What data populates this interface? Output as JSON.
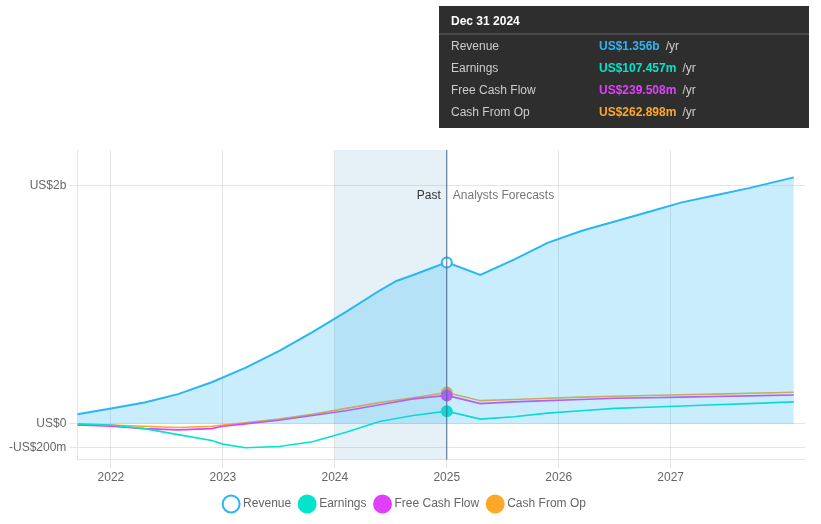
{
  "chart_data": {
    "type": "line",
    "xlim": [
      2021.7,
      2028.2
    ],
    "xticks": [
      2022,
      2023,
      2024,
      2025,
      2026,
      2027
    ],
    "ylim": [
      -0.3,
      2.3
    ],
    "yticks": [
      {
        "value": -0.2,
        "label": "-US$200m"
      },
      {
        "value": 0,
        "label": "US$0"
      },
      {
        "value": 2,
        "label": "US$2b"
      }
    ],
    "grid": true,
    "legend": "bottom",
    "divider_x": 2025.0,
    "shaded_span": [
      2024.0,
      2025.0
    ],
    "annotations": [
      {
        "text": "Past",
        "x": 2025.0,
        "y": 1.97
      },
      {
        "text": "Analysts Forecasts",
        "x": 2025.0,
        "y": 1.97
      }
    ],
    "tooltip": {
      "title": "Dec 31 2024",
      "unit": "/yr",
      "items": [
        {
          "label": "Revenue",
          "value": "US$1.356b",
          "color": "#29b6f6"
        },
        {
          "label": "Earnings",
          "value": "US$107.457m",
          "color": "#00e5cc"
        },
        {
          "label": "Free Cash Flow",
          "value": "US$239.508m",
          "color": "#e040fb"
        },
        {
          "label": "Cash From Op",
          "value": "US$262.898m",
          "color": "#ffa726"
        }
      ]
    },
    "series": [
      {
        "name": "Revenue",
        "color": "#29b6f6",
        "type": "area",
        "x": [
          2021.7,
          2022.0,
          2022.3,
          2022.6,
          2022.9,
          2023.2,
          2023.5,
          2023.8,
          2024.1,
          2024.4,
          2024.55,
          2024.7,
          2025.0,
          2025.3,
          2025.6,
          2025.9,
          2026.2,
          2026.5,
          2026.8,
          2027.1,
          2027.4,
          2027.7,
          2028.1
        ],
        "values": [
          0.08,
          0.13,
          0.18,
          0.25,
          0.35,
          0.47,
          0.61,
          0.77,
          0.94,
          1.12,
          1.2,
          1.25,
          1.356,
          1.25,
          1.38,
          1.52,
          1.62,
          1.7,
          1.78,
          1.86,
          1.92,
          1.98,
          2.07
        ]
      },
      {
        "name": "Earnings",
        "color": "#00e5cc",
        "type": "line",
        "x": [
          2021.7,
          2022.0,
          2022.3,
          2022.6,
          2022.9,
          2023.0,
          2023.2,
          2023.5,
          2023.8,
          2024.1,
          2024.4,
          2024.7,
          2025.0,
          2025.3,
          2025.6,
          2025.9,
          2026.2,
          2026.5,
          2026.8,
          2027.1,
          2027.4,
          2027.7,
          2028.1
        ],
        "values": [
          0.0,
          -0.01,
          -0.04,
          -0.09,
          -0.14,
          -0.17,
          -0.2,
          -0.19,
          -0.15,
          -0.07,
          0.02,
          0.07,
          0.107,
          0.04,
          0.06,
          0.09,
          0.11,
          0.13,
          0.14,
          0.15,
          0.16,
          0.17,
          0.185
        ]
      },
      {
        "name": "Free Cash Flow",
        "color": "#e040fb",
        "type": "line",
        "x": [
          2021.7,
          2022.0,
          2022.3,
          2022.6,
          2022.9,
          2023.0,
          2023.2,
          2023.5,
          2023.8,
          2024.1,
          2024.4,
          2024.7,
          2025.0,
          2025.3,
          2025.6,
          2025.9,
          2026.2,
          2026.5,
          2026.8,
          2027.1,
          2027.4,
          2027.7,
          2028.1
        ],
        "values": [
          -0.01,
          -0.02,
          -0.04,
          -0.05,
          -0.04,
          -0.02,
          0.0,
          0.03,
          0.07,
          0.11,
          0.16,
          0.21,
          0.239,
          0.17,
          0.185,
          0.195,
          0.205,
          0.215,
          0.22,
          0.225,
          0.23,
          0.235,
          0.242
        ]
      },
      {
        "name": "Cash From Op",
        "color": "#ffa726",
        "type": "line",
        "x": [
          2021.7,
          2022.0,
          2022.3,
          2022.6,
          2022.9,
          2023.0,
          2023.2,
          2023.5,
          2023.8,
          2024.1,
          2024.4,
          2024.7,
          2025.0,
          2025.3,
          2025.6,
          2025.9,
          2026.2,
          2026.5,
          2026.8,
          2027.1,
          2027.4,
          2027.7,
          2028.1
        ],
        "values": [
          -0.01,
          -0.01,
          -0.02,
          -0.03,
          -0.02,
          -0.01,
          0.01,
          0.04,
          0.08,
          0.13,
          0.18,
          0.22,
          0.263,
          0.195,
          0.205,
          0.215,
          0.225,
          0.232,
          0.238,
          0.244,
          0.25,
          0.257,
          0.265
        ]
      }
    ]
  }
}
